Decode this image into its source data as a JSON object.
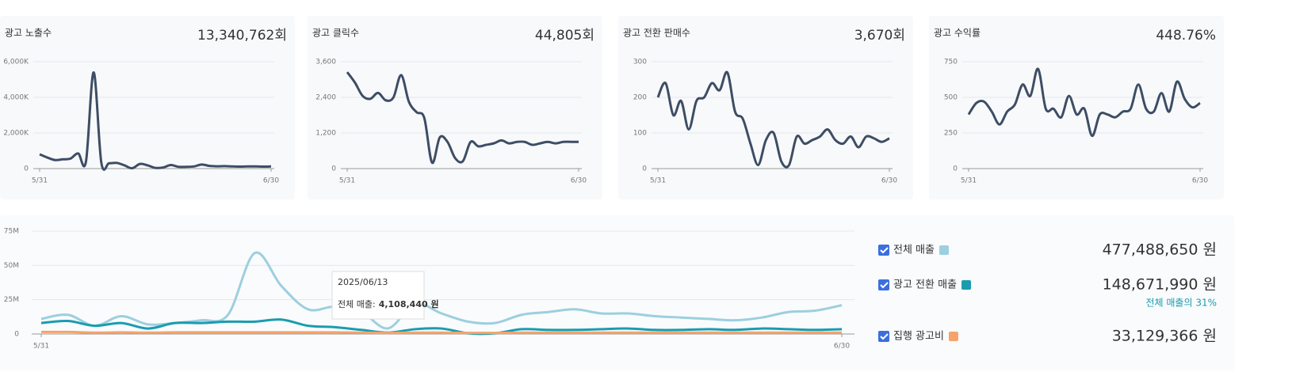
{
  "cards": [
    {
      "title": "광고 노출수",
      "total": "13,340,762회",
      "chart_data": {
        "type": "line",
        "color": "#3d4d65",
        "categories": [
          "5/31",
          null,
          null,
          null,
          null,
          null,
          null,
          null,
          null,
          null,
          null,
          null,
          null,
          null,
          null,
          null,
          null,
          null,
          null,
          null,
          null,
          null,
          null,
          null,
          null,
          null,
          null,
          null,
          null,
          null,
          "6/30"
        ],
        "values": [
          800000,
          620000,
          480000,
          520000,
          560000,
          850000,
          380000,
          5400000,
          320000,
          300000,
          320000,
          180000,
          20000,
          260000,
          180000,
          40000,
          60000,
          200000,
          100000,
          100000,
          120000,
          230000,
          150000,
          130000,
          140000,
          120000,
          110000,
          120000,
          120000,
          110000,
          120000
        ],
        "ylim": [
          0,
          6000000
        ],
        "yticks": [
          0,
          {
            "value": 2000000,
            "label": "2,000K"
          },
          {
            "value": 4000000,
            "label": "4,000K"
          },
          {
            "value": 6000000,
            "label": "6,000K"
          }
        ],
        "grid": true
      }
    },
    {
      "title": "광고 클릭수",
      "total": "44,805회",
      "chart_data": {
        "type": "line",
        "color": "#3d4d65",
        "categories": [
          "5/31",
          null,
          null,
          null,
          null,
          null,
          null,
          null,
          null,
          null,
          null,
          null,
          null,
          null,
          null,
          null,
          null,
          null,
          null,
          null,
          null,
          null,
          null,
          null,
          null,
          null,
          null,
          null,
          null,
          null,
          "6/30"
        ],
        "values": [
          3250,
          2900,
          2450,
          2350,
          2550,
          2300,
          2400,
          3150,
          2250,
          1900,
          1700,
          200,
          1050,
          900,
          350,
          250,
          900,
          750,
          800,
          850,
          950,
          850,
          900,
          900,
          800,
          850,
          900,
          850,
          900,
          900,
          900
        ],
        "ylim": [
          0,
          3600
        ],
        "yticks": [
          0,
          {
            "value": 1200,
            "label": "1,200"
          },
          {
            "value": 2400,
            "label": "2,400"
          },
          {
            "value": 3600,
            "label": "3,600"
          }
        ],
        "grid": true
      }
    },
    {
      "title": "광고 전환 판매수",
      "total": "3,670회",
      "chart_data": {
        "type": "line",
        "color": "#3d4d65",
        "categories": [
          "5/31",
          null,
          null,
          null,
          null,
          null,
          null,
          null,
          null,
          null,
          null,
          null,
          null,
          null,
          null,
          null,
          null,
          null,
          null,
          null,
          null,
          null,
          null,
          null,
          null,
          null,
          null,
          null,
          null,
          null,
          "6/30"
        ],
        "values": [
          200,
          240,
          150,
          190,
          110,
          190,
          200,
          240,
          220,
          270,
          160,
          140,
          70,
          10,
          80,
          100,
          20,
          10,
          90,
          70,
          80,
          90,
          110,
          80,
          70,
          90,
          60,
          90,
          85,
          75,
          85
        ],
        "ylim": [
          0,
          300
        ],
        "yticks": [
          0,
          100,
          200,
          300
        ],
        "grid": true
      }
    },
    {
      "title": "광고 수익률",
      "total": "448.76%",
      "chart_data": {
        "type": "line",
        "color": "#3d4d65",
        "categories": [
          "5/31",
          null,
          null,
          null,
          null,
          null,
          null,
          null,
          null,
          null,
          null,
          null,
          null,
          null,
          null,
          null,
          null,
          null,
          null,
          null,
          null,
          null,
          null,
          null,
          null,
          null,
          null,
          null,
          null,
          null,
          "6/30"
        ],
        "values": [
          380,
          460,
          470,
          400,
          310,
          400,
          450,
          590,
          510,
          700,
          420,
          420,
          360,
          510,
          380,
          420,
          230,
          380,
          380,
          360,
          400,
          420,
          590,
          420,
          400,
          530,
          400,
          610,
          490,
          430,
          460
        ],
        "ylim": [
          0,
          750
        ],
        "yticks": [
          0,
          250,
          500,
          750
        ],
        "grid": true
      }
    }
  ],
  "main": {
    "chart_data": {
      "type": "line",
      "categories": [
        "5/31",
        null,
        null,
        null,
        null,
        null,
        null,
        null,
        null,
        null,
        null,
        null,
        null,
        null,
        null,
        null,
        null,
        null,
        null,
        null,
        null,
        null,
        null,
        null,
        null,
        null,
        null,
        null,
        null,
        null,
        "6/30"
      ],
      "series": [
        {
          "name": "전체 매출",
          "color": "#9ccfe0",
          "values": [
            11000000,
            14000000,
            6000000,
            13000000,
            7000000,
            8000000,
            10000000,
            14000000,
            59000000,
            35000000,
            18000000,
            20000000,
            16000000,
            4108440,
            22000000,
            15000000,
            9000000,
            8000000,
            14000000,
            16000000,
            18000000,
            15000000,
            15000000,
            13000000,
            12000000,
            11000000,
            10000000,
            12000000,
            16000000,
            17000000,
            21000000
          ]
        },
        {
          "name": "광고 전환 매출",
          "color": "#1a9cb0",
          "values": [
            8000000,
            9500000,
            6000000,
            8000000,
            4000000,
            8000000,
            8000000,
            9000000,
            9000000,
            10500000,
            6000000,
            5000000,
            3000000,
            1000000,
            3500000,
            4000000,
            500000,
            500000,
            3500000,
            3000000,
            3000000,
            3500000,
            4000000,
            3000000,
            3000000,
            3500000,
            3000000,
            4000000,
            3500000,
            3000000,
            3500000
          ]
        },
        {
          "name": "집행 광고비",
          "color": "#f5a36b",
          "values": [
            1500000,
            1500000,
            1000000,
            1200000,
            1000000,
            1200000,
            1200000,
            1200000,
            1200000,
            1200000,
            1200000,
            1200000,
            1000000,
            800000,
            1000000,
            1000000,
            800000,
            800000,
            1000000,
            1000000,
            1000000,
            1000000,
            1000000,
            1000000,
            1000000,
            1000000,
            1000000,
            1000000,
            1000000,
            1000000,
            1000000
          ]
        }
      ],
      "ylim": [
        0,
        75000000
      ],
      "yticks": [
        0,
        {
          "value": 25000000,
          "label": "25M"
        },
        {
          "value": 50000000,
          "label": "50M"
        },
        {
          "value": 75000000,
          "label": "75M"
        }
      ],
      "grid": true
    },
    "tooltip": {
      "date": "2025/06/13",
      "label": "전체 매출:",
      "value": "4,108,440 원"
    },
    "legend": [
      {
        "total": "477,488,650 원"
      },
      {
        "total": "148,671,990 원",
        "note": "전체 매출의 31%"
      },
      {
        "total": "33,129,366 원"
      }
    ]
  }
}
